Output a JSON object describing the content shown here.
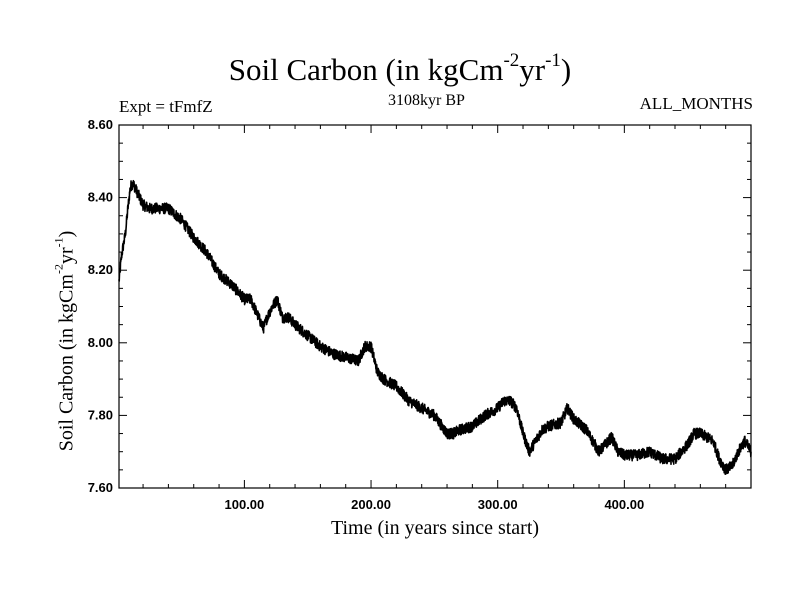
{
  "chart_data": {
    "type": "line",
    "title_main": "Soil Carbon (in kgCm",
    "title_exp1": "-2",
    "title_mid": "yr",
    "title_exp2": "-1",
    "title_close": ")",
    "expt_label": "Expt = tFmfZ",
    "time_label": "3108kyr BP",
    "months_label": "ALL_MONTHS",
    "xlabel": "Time (in years since start)",
    "ylabel_main": "Soil Carbon (in kgCm",
    "ylabel_exp1": "-2",
    "ylabel_mid": "yr",
    "ylabel_exp2": "-1",
    "ylabel_close": ")",
    "xlim": [
      1,
      500
    ],
    "ylim": [
      7.6,
      8.6
    ],
    "x_ticks": [
      100,
      200,
      300,
      400
    ],
    "x_tick_labels": [
      "100.00",
      "200.00",
      "300.00",
      "400.00"
    ],
    "y_ticks": [
      7.6,
      7.8,
      8.0,
      8.2,
      8.4,
      8.6
    ],
    "y_tick_labels": [
      "7.60",
      "7.80",
      "8.00",
      "8.20",
      "8.40",
      "8.60"
    ],
    "series": [
      {
        "name": "Soil Carbon",
        "color": "#000000",
        "x": [
          1,
          3,
          6,
          8,
          10,
          12,
          16,
          20,
          25,
          30,
          40,
          50,
          60,
          70,
          80,
          90,
          100,
          105,
          110,
          115,
          118,
          122,
          126,
          130,
          135,
          140,
          150,
          160,
          170,
          180,
          190,
          195,
          200,
          205,
          210,
          220,
          230,
          240,
          250,
          260,
          265,
          270,
          280,
          290,
          300,
          305,
          310,
          315,
          320,
          325,
          330,
          335,
          340,
          350,
          355,
          360,
          370,
          380,
          385,
          390,
          395,
          400,
          410,
          420,
          430,
          440,
          450,
          455,
          460,
          465,
          470,
          475,
          480,
          485,
          490,
          495,
          500
        ],
        "y": [
          8.17,
          8.24,
          8.3,
          8.37,
          8.43,
          8.44,
          8.41,
          8.38,
          8.37,
          8.37,
          8.37,
          8.34,
          8.29,
          8.25,
          8.19,
          8.16,
          8.12,
          8.12,
          8.08,
          8.04,
          8.07,
          8.1,
          8.12,
          8.07,
          8.07,
          8.05,
          8.02,
          7.99,
          7.97,
          7.96,
          7.95,
          7.99,
          7.99,
          7.92,
          7.9,
          7.88,
          7.84,
          7.82,
          7.8,
          7.75,
          7.75,
          7.76,
          7.77,
          7.8,
          7.82,
          7.84,
          7.84,
          7.82,
          7.75,
          7.7,
          7.73,
          7.76,
          7.77,
          7.78,
          7.82,
          7.79,
          7.76,
          7.7,
          7.72,
          7.74,
          7.7,
          7.69,
          7.69,
          7.7,
          7.68,
          7.68,
          7.72,
          7.75,
          7.75,
          7.74,
          7.73,
          7.68,
          7.65,
          7.66,
          7.7,
          7.73,
          7.7
        ]
      }
    ]
  }
}
